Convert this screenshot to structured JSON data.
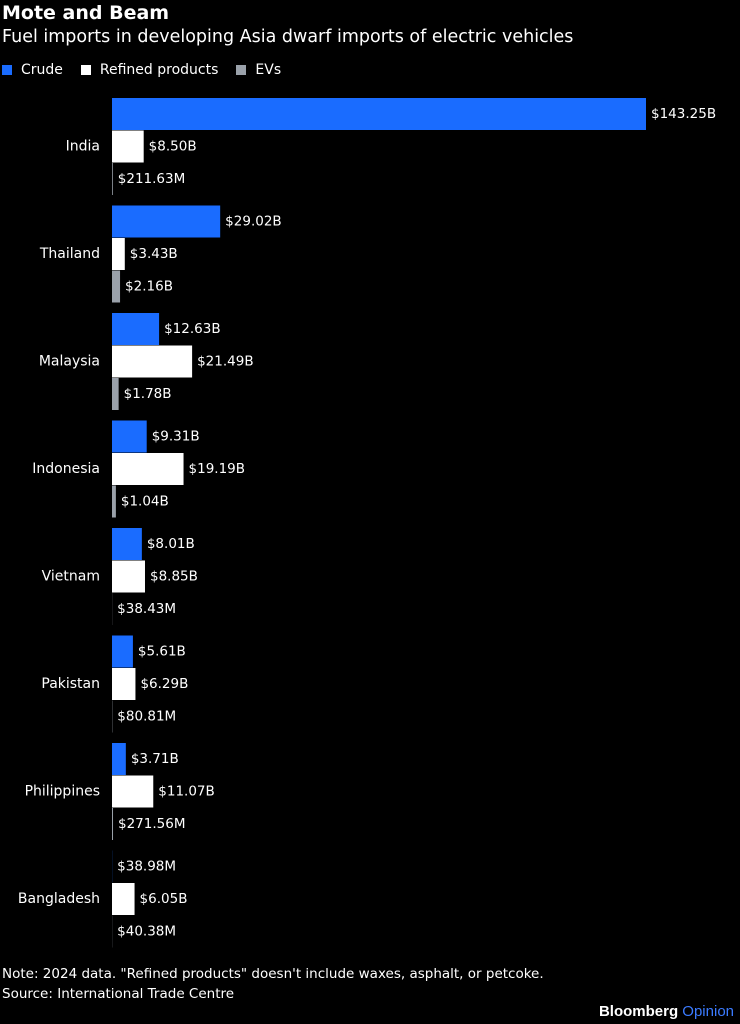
{
  "title": "Mote and Beam",
  "subtitle": "Fuel imports in developing Asia dwarf imports of electric vehicles",
  "legend": [
    {
      "name": "Crude",
      "color": "#1a6cff"
    },
    {
      "name": "Refined products",
      "color": "#ffffff"
    },
    {
      "name": "EVs",
      "color": "#9aa1aa"
    }
  ],
  "chart_data": {
    "type": "bar",
    "orientation": "horizontal",
    "unit": "USD billions",
    "categories": [
      "India",
      "Thailand",
      "Malaysia",
      "Indonesia",
      "Vietnam",
      "Pakistan",
      "Philippines",
      "Bangladesh"
    ],
    "series": [
      {
        "name": "Crude",
        "color": "#1a6cff",
        "values": [
          143.25,
          29.02,
          12.63,
          9.31,
          8.01,
          5.61,
          3.71,
          0.03898
        ],
        "labels": [
          "$143.25B",
          "$29.02B",
          "$12.63B",
          "$9.31B",
          "$8.01B",
          "$5.61B",
          "$3.71B",
          "$38.98M"
        ]
      },
      {
        "name": "Refined products",
        "color": "#ffffff",
        "values": [
          8.5,
          3.43,
          21.49,
          19.19,
          8.85,
          6.29,
          11.07,
          6.05
        ],
        "labels": [
          "$8.50B",
          "$3.43B",
          "$21.49B",
          "$19.19B",
          "$8.85B",
          "$6.29B",
          "$11.07B",
          "$6.05B"
        ]
      },
      {
        "name": "EVs",
        "color": "#9aa1aa",
        "values": [
          0.21163,
          2.16,
          1.78,
          1.04,
          0.03843,
          0.08081,
          0.27156,
          0.04038
        ],
        "labels": [
          "$211.63M",
          "$2.16B",
          "$1.78B",
          "$1.04B",
          "$38.43M",
          "$80.81M",
          "$271.56M",
          "$40.38M"
        ]
      }
    ],
    "xlim": [
      0,
      143.25
    ],
    "grid": false,
    "legend_position": "top-left"
  },
  "note": "Note: 2024 data. \"Refined products\" doesn't include waxes, asphalt, or petcoke.",
  "source": "Source: International Trade Centre",
  "brand": {
    "name": "Bloomberg",
    "accent": "Opinion"
  }
}
